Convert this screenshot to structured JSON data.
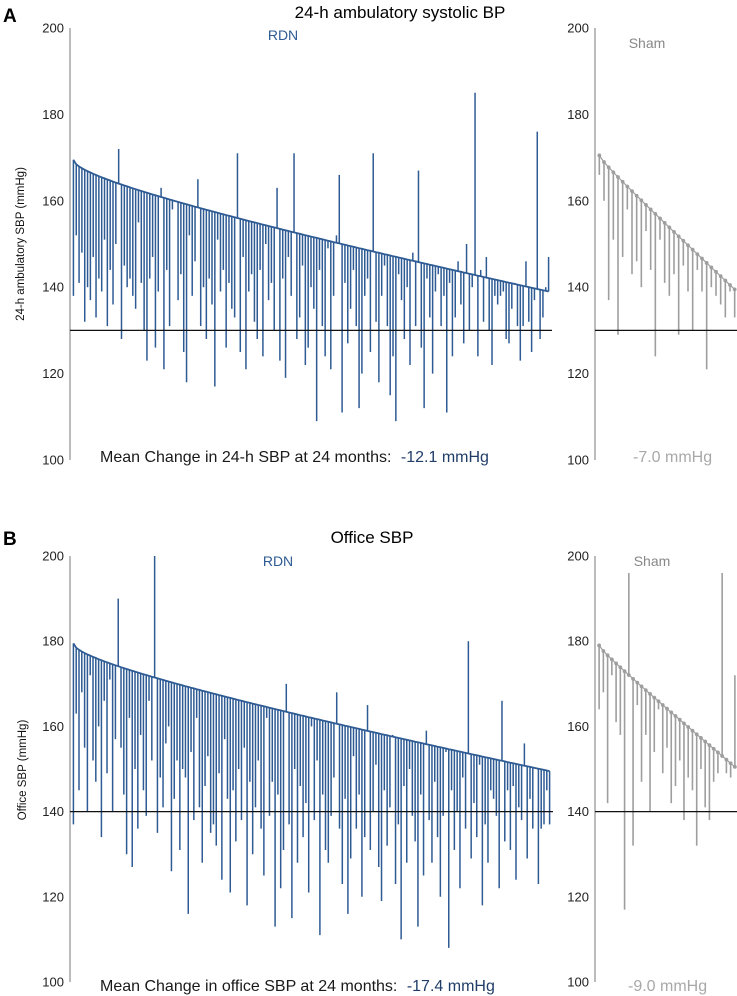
{
  "colors": {
    "rdn": "#2e5b94",
    "sham": "#9e9e9e",
    "rdn_text": "#1f3d68",
    "sham_text": "#a8a8a8"
  },
  "chart_data": [
    {
      "panel": "A",
      "type": "bar",
      "title": "24-h ambulatory systolic BP",
      "ylabel": "24-h ambulatory SBP (mmHg)",
      "ylim": [
        100,
        200
      ],
      "yticks": [
        100,
        120,
        140,
        160,
        180,
        200
      ],
      "reference_line": 130,
      "mean_label": "Mean Change in 24-h SBP at 24 months:",
      "groups": [
        {
          "name": "RDN",
          "mean_change": "-12.1 mmHg",
          "baseline": {
            "n": 169,
            "start": 169.5,
            "end": 139.0,
            "shape": 0.6
          },
          "followup": [
            138,
            152,
            141,
            148,
            132,
            140,
            137,
            147,
            133,
            142,
            139,
            151,
            131,
            144,
            136,
            150,
            172,
            128,
            145,
            140,
            142,
            138,
            135,
            155,
            141,
            130,
            123,
            142,
            147,
            126,
            139,
            163,
            121,
            144,
            131,
            158,
            160,
            137,
            143,
            125,
            118,
            152,
            138,
            146,
            165,
            131,
            140,
            128,
            142,
            136,
            117,
            151,
            139,
            144,
            126,
            141,
            135,
            133,
            171,
            125,
            147,
            121,
            139,
            143,
            132,
            128,
            144,
            124,
            150,
            137,
            141,
            130,
            163,
            123,
            142,
            119,
            147,
            138,
            171,
            128,
            133,
            145,
            122,
            126,
            140,
            135,
            109,
            144,
            131,
            124,
            149,
            121,
            138,
            152,
            166,
            111,
            141,
            127,
            135,
            144,
            131,
            112,
            120,
            138,
            142,
            125,
            171,
            132,
            118,
            138,
            145,
            131,
            115,
            124,
            109,
            143,
            137,
            128,
            140,
            122,
            148,
            131,
            167,
            126,
            112,
            142,
            133,
            120,
            139,
            143,
            131,
            138,
            111,
            141,
            124,
            133,
            146,
            136,
            127,
            150,
            130,
            140,
            185,
            124,
            144,
            132,
            147,
            130,
            122,
            138,
            136,
            138,
            139,
            128,
            127,
            135,
            141,
            131,
            123,
            131,
            146,
            132,
            125,
            137,
            176,
            128,
            133,
            140,
            147
          ]
        },
        {
          "name": "Sham",
          "mean_change": "-7.0 mmHg",
          "baseline": {
            "n": 30,
            "start": 170.5,
            "end": 139.5,
            "shape": 0.9
          },
          "followup": [
            166,
            160,
            137,
            151,
            129,
            147,
            158,
            143,
            146,
            140,
            153,
            144,
            124,
            151,
            141,
            138,
            143,
            129,
            145,
            139,
            130,
            144,
            139,
            121,
            140,
            138,
            136,
            133,
            139,
            133
          ]
        }
      ]
    },
    {
      "panel": "B",
      "type": "bar",
      "title": "Office SBP",
      "ylabel": "Office SBP (mmHg)",
      "ylim": [
        100,
        200
      ],
      "yticks": [
        100,
        120,
        140,
        160,
        180,
        200
      ],
      "reference_line": 140,
      "mean_label": "Mean Change in office SBP at 24 months:",
      "groups": [
        {
          "name": "RDN",
          "mean_change": "-17.4 mmHg",
          "baseline": {
            "n": 171,
            "start": 179.5,
            "end": 149.5,
            "shape": 0.6
          },
          "followup": [
            137,
            163,
            145,
            168,
            155,
            140,
            172,
            152,
            147,
            160,
            134,
            166,
            149,
            171,
            140,
            157,
            190,
            155,
            144,
            130,
            162,
            127,
            150,
            136,
            158,
            145,
            139,
            166,
            152,
            200,
            135,
            148,
            141,
            156,
            160,
            126,
            143,
            152,
            131,
            150,
            148,
            116,
            154,
            138,
            162,
            141,
            128,
            146,
            153,
            135,
            137,
            132,
            149,
            124,
            157,
            143,
            121,
            145,
            133,
            150,
            138,
            155,
            118,
            147,
            130,
            141,
            152,
            136,
            125,
            162,
            139,
            147,
            113,
            144,
            122,
            131,
            170,
            137,
            115,
            150,
            128,
            146,
            134,
            142,
            121,
            160,
            138,
            152,
            111,
            144,
            131,
            128,
            139,
            148,
            168,
            136,
            123,
            143,
            116,
            129,
            153,
            136,
            144,
            120,
            134,
            165,
            131,
            140,
            151,
            127,
            119,
            145,
            132,
            141,
            158,
            123,
            137,
            110,
            146,
            128,
            150,
            139,
            133,
            113,
            144,
            125,
            159,
            138,
            128,
            147,
            134,
            120,
            139,
            154,
            108,
            145,
            131,
            140,
            122,
            148,
            136,
            180,
            129,
            142,
            134,
            151,
            118,
            137,
            128,
            145,
            143,
            139,
            122,
            166,
            133,
            145,
            131,
            146,
            124,
            141,
            138,
            156,
            129,
            143,
            136,
            150,
            123,
            136,
            137,
            145,
            137
          ]
        },
        {
          "name": "Sham",
          "mean_change": "-9.0 mmHg",
          "baseline": {
            "n": 33,
            "start": 179.0,
            "end": 150.5,
            "shape": 0.9
          },
          "followup": [
            164,
            168,
            142,
            172,
            161,
            158,
            117,
            196,
            132,
            165,
            147,
            158,
            140,
            154,
            164,
            149,
            155,
            142,
            146,
            152,
            138,
            148,
            145,
            132,
            150,
            141,
            138,
            147,
            149,
            196,
            149,
            148,
            172
          ]
        }
      ]
    }
  ]
}
